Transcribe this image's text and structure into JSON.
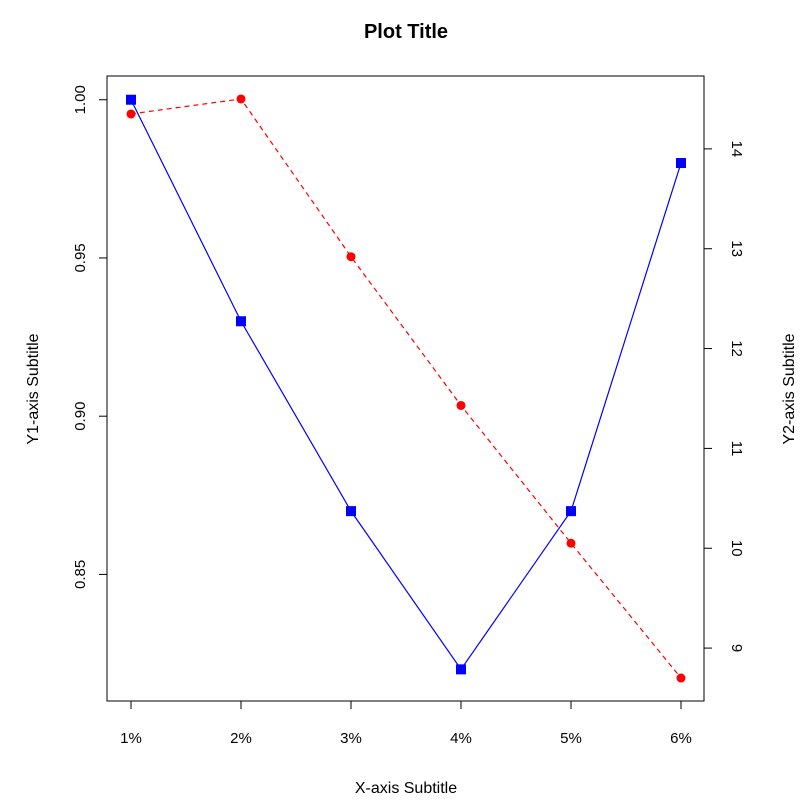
{
  "chart_data": {
    "type": "line",
    "title": "Plot Title",
    "xlabel": "X-axis Subtitle",
    "ylabel": "Y1-axis Subtitle",
    "y2label": "Y2-axis Subtitle",
    "categories": [
      "1%",
      "2%",
      "3%",
      "4%",
      "5%",
      "6%"
    ],
    "y1_ticks": [
      "0.85",
      "0.90",
      "0.95",
      "1.00"
    ],
    "y2_ticks": [
      "9",
      "10",
      "11",
      "12",
      "13",
      "14"
    ],
    "y1lim": [
      0.81,
      1.0075
    ],
    "y2lim": [
      8.47,
      14.73
    ],
    "grid": false,
    "series": [
      {
        "axis": "y1",
        "color": "#0000ff",
        "line_style": "solid",
        "marker": "square",
        "values": [
          1.0,
          0.93,
          0.87,
          0.82,
          0.87,
          0.98
        ]
      },
      {
        "axis": "y2",
        "color": "#ff0000",
        "line_style": "dashed",
        "marker": "circle",
        "values": [
          14.35,
          14.5,
          12.92,
          11.43,
          10.05,
          8.7
        ]
      }
    ]
  }
}
